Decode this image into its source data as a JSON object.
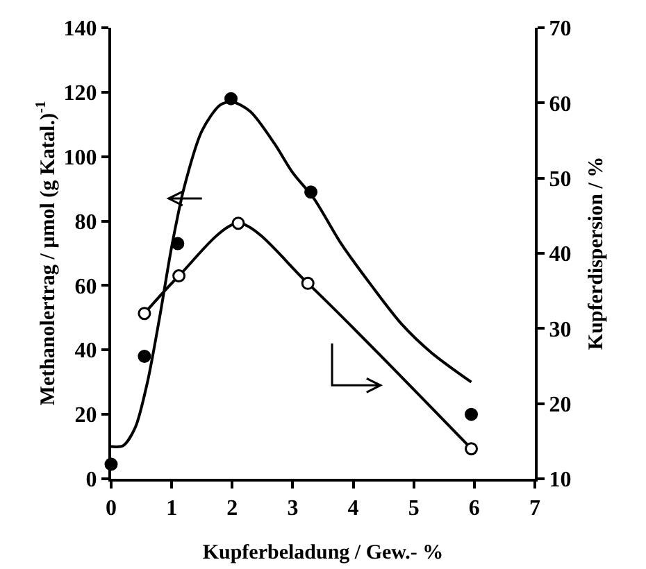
{
  "chart_data": {
    "type": "scatter",
    "xlabel": "Kupferbeladung / Gew.- %",
    "ylabel": "Methanolertrag / µmol (g Katal.)$^{-1}$",
    "y2label": "Kupferdispersion / %",
    "x": [
      0,
      0.55,
      1.1,
      1.98,
      3.3,
      5.95
    ],
    "series": [
      {
        "color": "#000000",
        "marker": "circle",
        "values": [
          4.5,
          38,
          73,
          118,
          89,
          20
        ]
      },
      {
        "type": "line",
        "color": "#000000",
        "marker": "none",
        "x": [
          0,
          0.2,
          0.4,
          0.6,
          0.8,
          1.0,
          1.2,
          1.5,
          1.8,
          2.0,
          2.3,
          2.7,
          3.0,
          3.35,
          3.8,
          4.3,
          4.8,
          5.3,
          5.95
        ],
        "values": [
          10,
          10.3,
          16,
          30,
          50,
          72,
          90,
          108,
          116,
          117,
          114,
          104,
          95,
          87,
          73,
          60,
          48,
          39,
          30
        ]
      },
      {
        "type": "line",
        "color": "#000000",
        "marker": "circle-open",
        "axis": "y2",
        "x": [
          0.55,
          1.12,
          2.1,
          3.25,
          5.95
        ],
        "values": [
          32,
          37,
          44,
          36,
          14
        ]
      }
    ],
    "xlim": [
      0,
      7
    ],
    "xticks": [
      0,
      1,
      2,
      3,
      4,
      5,
      6,
      7
    ],
    "ylim": [
      0,
      140
    ],
    "yticks": [
      0,
      20,
      40,
      60,
      80,
      100,
      120,
      140
    ],
    "y2lim": [
      10,
      70
    ],
    "y2ticks": [
      10,
      20,
      30,
      40,
      50,
      60,
      70
    ],
    "grid": false
  }
}
